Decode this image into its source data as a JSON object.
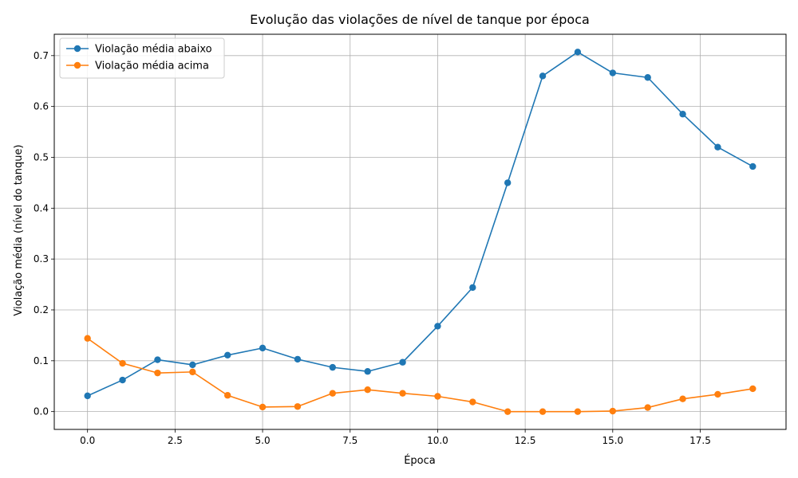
{
  "chart_data": {
    "type": "line",
    "title": "Evolução das violações de nível de tanque por época",
    "xlabel": "Época",
    "ylabel": "Violação média (nível do tanque)",
    "xlim": [
      -0.95,
      19.95
    ],
    "ylim": [
      -0.035,
      0.742
    ],
    "xticks": [
      0.0,
      2.5,
      5.0,
      7.5,
      10.0,
      12.5,
      15.0,
      17.5
    ],
    "xtick_labels": [
      "0.0",
      "2.5",
      "5.0",
      "7.5",
      "10.0",
      "12.5",
      "15.0",
      "17.5"
    ],
    "yticks": [
      0.0,
      0.1,
      0.2,
      0.3,
      0.4,
      0.5,
      0.6,
      0.7
    ],
    "ytick_labels": [
      "0.0",
      "0.1",
      "0.2",
      "0.3",
      "0.4",
      "0.5",
      "0.6",
      "0.7"
    ],
    "grid": true,
    "legend_position": "top-left",
    "x": [
      0,
      1,
      2,
      3,
      4,
      5,
      6,
      7,
      8,
      9,
      10,
      11,
      12,
      13,
      14,
      15,
      16,
      17,
      18,
      19
    ],
    "series": [
      {
        "name": "Violação média abaixo",
        "color": "#1f77b4",
        "values": [
          0.031,
          0.062,
          0.102,
          0.092,
          0.111,
          0.125,
          0.103,
          0.087,
          0.079,
          0.097,
          0.168,
          0.244,
          0.45,
          0.66,
          0.707,
          0.666,
          0.657,
          0.585,
          0.52,
          0.482
        ]
      },
      {
        "name": "Violação média acima",
        "color": "#ff7f0e",
        "values": [
          0.144,
          0.095,
          0.076,
          0.078,
          0.032,
          0.009,
          0.01,
          0.036,
          0.043,
          0.036,
          0.03,
          0.019,
          0.0,
          0.0,
          0.0,
          0.001,
          0.008,
          0.025,
          0.034,
          0.045
        ]
      }
    ]
  }
}
